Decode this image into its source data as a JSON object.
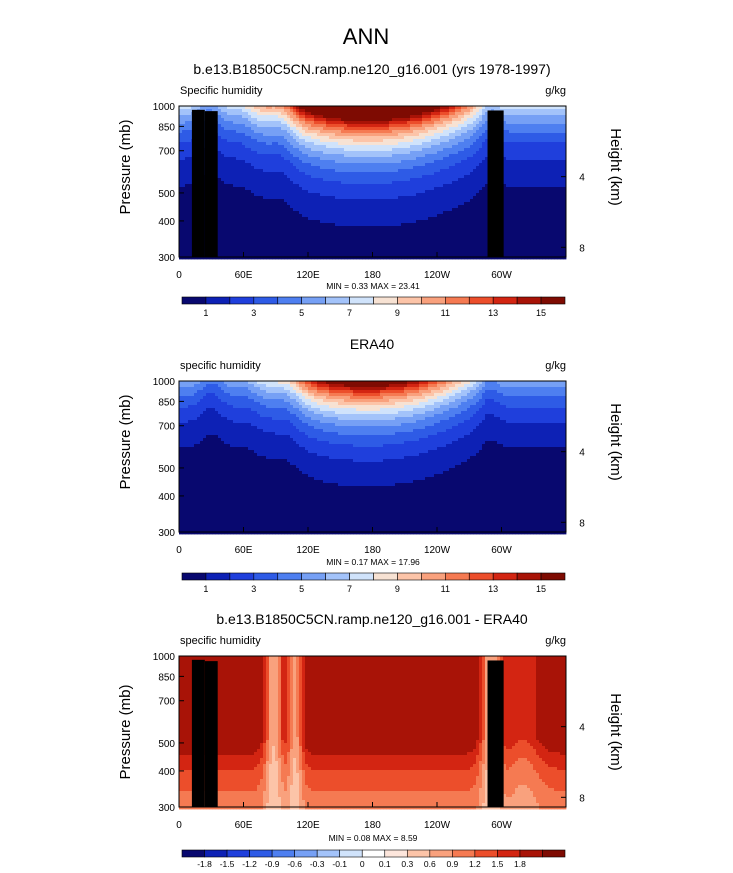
{
  "figure": {
    "main_title": "ANN"
  },
  "colors": {
    "abs_levels": [
      "#08086f",
      "#0d21b5",
      "#1f3fdc",
      "#2e5be6",
      "#4e7ff0",
      "#76a0f5",
      "#a3c3fa",
      "#d0e3fb",
      "#f7e2d3",
      "#fcc4a8",
      "#f9a17d",
      "#f57a52",
      "#ec4e2b",
      "#d32512",
      "#a81307",
      "#7e0b02"
    ],
    "diff_levels": [
      "#08086f",
      "#0d21b5",
      "#1f3fdc",
      "#2e5be6",
      "#4e7ff0",
      "#76a0f5",
      "#a3c3fa",
      "#d0e3fb",
      "#ffffff",
      "#fde6dc",
      "#fcc4a8",
      "#f9a17d",
      "#f57a52",
      "#ec4e2b",
      "#d32512",
      "#a81307",
      "#7e0b02"
    ],
    "land": "#000000"
  },
  "chart_data": [
    {
      "type": "heatmap",
      "title": "b.e13.B1850C5CN.ramp.ne120_g16.001 (yrs 1978-1997)",
      "left_label": "Specific humidity",
      "right_label": "g/kg",
      "ylabel": "Pressure (mb)",
      "y2label": "Height (km)",
      "yticks": [
        "300",
        "400",
        "500",
        "700",
        "850",
        "1000"
      ],
      "y2ticks": [
        "8",
        "4"
      ],
      "xticks": [
        "0",
        "60E",
        "120E",
        "180",
        "120W",
        "60W"
      ],
      "stats": "MIN =  0.33  MAX =  23.41",
      "colorbar_labels": [
        "1",
        "3",
        "5",
        "7",
        "9",
        "11",
        "13",
        "15"
      ],
      "levels": [
        1,
        2,
        3,
        4,
        5,
        6,
        7,
        8,
        9,
        10,
        11,
        12,
        13,
        14,
        15
      ],
      "xlim": [
        0,
        360
      ],
      "ylim": [
        1000,
        300
      ],
      "min": 0.33,
      "max": 23.41,
      "mode": "model"
    },
    {
      "type": "heatmap",
      "title": "ERA40",
      "left_label": "specific humidity",
      "right_label": "g/kg",
      "ylabel": "Pressure (mb)",
      "y2label": "Height (km)",
      "yticks": [
        "300",
        "400",
        "500",
        "700",
        "850",
        "1000"
      ],
      "y2ticks": [
        "8",
        "4"
      ],
      "xticks": [
        "0",
        "60E",
        "120E",
        "180",
        "120W",
        "60W"
      ],
      "stats": "MIN =  0.17  MAX =  17.96",
      "colorbar_labels": [
        "1",
        "3",
        "5",
        "7",
        "9",
        "11",
        "13",
        "15"
      ],
      "levels": [
        1,
        2,
        3,
        4,
        5,
        6,
        7,
        8,
        9,
        10,
        11,
        12,
        13,
        14,
        15
      ],
      "xlim": [
        0,
        360
      ],
      "ylim": [
        1000,
        300
      ],
      "min": 0.17,
      "max": 17.96,
      "mode": "obs"
    },
    {
      "type": "heatmap",
      "title": "b.e13.B1850C5CN.ramp.ne120_g16.001 - ERA40",
      "left_label": "specific humidity",
      "right_label": "g/kg",
      "ylabel": "Pressure (mb)",
      "y2label": "Height (km)",
      "yticks": [
        "300",
        "400",
        "500",
        "700",
        "850",
        "1000"
      ],
      "y2ticks": [
        "8",
        "4"
      ],
      "xticks": [
        "0",
        "60E",
        "120E",
        "180",
        "120W",
        "60W"
      ],
      "stats": "MIN =  0.08  MAX =  8.59",
      "colorbar_labels": [
        "-1.8",
        "-1.5",
        "-1.2",
        "-0.9",
        "-0.6",
        "-0.3",
        "-0.1",
        "0",
        "0.1",
        "0.3",
        "0.6",
        "0.9",
        "1.2",
        "1.5",
        "1.8"
      ],
      "levels": [
        -1.8,
        -1.5,
        -1.2,
        -0.9,
        -0.6,
        -0.3,
        -0.1,
        0,
        0.1,
        0.3,
        0.6,
        0.9,
        1.2,
        1.5,
        1.8
      ],
      "xlim": [
        0,
        360
      ],
      "ylim": [
        1000,
        300
      ],
      "min": 0.08,
      "max": 8.59,
      "mode": "diff"
    }
  ]
}
